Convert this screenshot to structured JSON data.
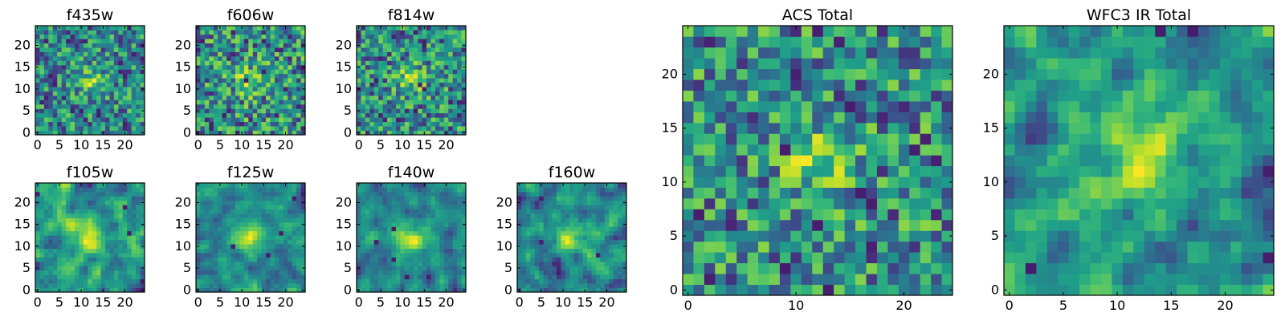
{
  "chart_data": [
    {
      "id": "f435w",
      "type": "heatmap",
      "title": "f435w",
      "grid_size": 25,
      "xlim": [
        -0.5,
        24.5
      ],
      "ylim": [
        -0.5,
        24.5
      ],
      "xticks": [
        0,
        5,
        10,
        15,
        20
      ],
      "yticks": [
        0,
        5,
        10,
        15,
        20
      ],
      "colormap": "viridis",
      "texture": "fine",
      "seed": 11
    },
    {
      "id": "f606w",
      "type": "heatmap",
      "title": "f606w",
      "grid_size": 25,
      "xlim": [
        -0.5,
        24.5
      ],
      "ylim": [
        -0.5,
        24.5
      ],
      "xticks": [
        0,
        5,
        10,
        15,
        20
      ],
      "yticks": [
        0,
        5,
        10,
        15,
        20
      ],
      "colormap": "viridis",
      "texture": "fine",
      "seed": 23
    },
    {
      "id": "f814w",
      "type": "heatmap",
      "title": "f814w",
      "grid_size": 25,
      "xlim": [
        -0.5,
        24.5
      ],
      "ylim": [
        -0.5,
        24.5
      ],
      "xticks": [
        0,
        5,
        10,
        15,
        20
      ],
      "yticks": [
        0,
        5,
        10,
        15,
        20
      ],
      "colormap": "viridis",
      "texture": "fine",
      "seed": 37
    },
    {
      "id": "f105w",
      "type": "heatmap",
      "title": "f105w",
      "grid_size": 25,
      "xlim": [
        -0.5,
        24.5
      ],
      "ylim": [
        -0.5,
        24.5
      ],
      "xticks": [
        0,
        5,
        10,
        15,
        20
      ],
      "yticks": [
        0,
        5,
        10,
        15,
        20
      ],
      "colormap": "viridis",
      "texture": "smooth",
      "seed": 41
    },
    {
      "id": "f125w",
      "type": "heatmap",
      "title": "f125w",
      "grid_size": 25,
      "xlim": [
        -0.5,
        24.5
      ],
      "ylim": [
        -0.5,
        24.5
      ],
      "xticks": [
        0,
        5,
        10,
        15,
        20
      ],
      "yticks": [
        0,
        5,
        10,
        15,
        20
      ],
      "colormap": "viridis",
      "texture": "smooth",
      "seed": 53
    },
    {
      "id": "f140w",
      "type": "heatmap",
      "title": "f140w",
      "grid_size": 25,
      "xlim": [
        -0.5,
        24.5
      ],
      "ylim": [
        -0.5,
        24.5
      ],
      "xticks": [
        0,
        5,
        10,
        15,
        20
      ],
      "yticks": [
        0,
        5,
        10,
        15,
        20
      ],
      "colormap": "viridis",
      "texture": "smooth",
      "seed": 67
    },
    {
      "id": "f160w",
      "type": "heatmap",
      "title": "f160w",
      "grid_size": 25,
      "xlim": [
        -0.5,
        24.5
      ],
      "ylim": [
        -0.5,
        24.5
      ],
      "xticks": [
        0,
        5,
        10,
        15,
        20
      ],
      "yticks": [
        0,
        5,
        10,
        15,
        20
      ],
      "colormap": "viridis",
      "texture": "smooth",
      "seed": 79
    },
    {
      "id": "acs-total",
      "type": "heatmap",
      "title": "ACS Total",
      "grid_size": 25,
      "xlim": [
        -0.5,
        24.5
      ],
      "ylim": [
        -0.5,
        24.5
      ],
      "xticks": [
        0,
        10,
        20
      ],
      "yticks": [
        0,
        5,
        10,
        15,
        20
      ],
      "colormap": "viridis",
      "texture": "fine",
      "seed": 97
    },
    {
      "id": "wfc3-ir-total",
      "type": "heatmap",
      "title": "WFC3 IR Total",
      "grid_size": 25,
      "xlim": [
        -0.5,
        24.5
      ],
      "ylim": [
        -0.5,
        24.5
      ],
      "xticks": [
        0,
        5,
        10,
        15,
        20
      ],
      "yticks": [
        0,
        5,
        10,
        15,
        20
      ],
      "colormap": "viridis",
      "texture": "smooth",
      "seed": 113
    }
  ]
}
